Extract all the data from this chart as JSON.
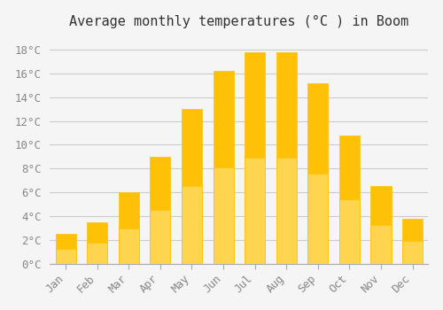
{
  "title": "Average monthly temperatures (°C ) in Boom",
  "months": [
    "Jan",
    "Feb",
    "Mar",
    "Apr",
    "May",
    "Jun",
    "Jul",
    "Aug",
    "Sep",
    "Oct",
    "Nov",
    "Dec"
  ],
  "values": [
    2.5,
    3.5,
    6.0,
    9.0,
    13.0,
    16.2,
    17.8,
    17.8,
    15.2,
    10.8,
    6.5,
    3.8
  ],
  "bar_color_top": "#FFC107",
  "bar_color_bottom": "#FFD54F",
  "bar_edge_color": "#E6A800",
  "background_color": "#F5F5F5",
  "grid_color": "#CCCCCC",
  "ylim": [
    0,
    19
  ],
  "ytick_step": 2,
  "title_fontsize": 11,
  "tick_fontsize": 9,
  "tick_color": "#888888",
  "spine_color": "#AAAAAA"
}
